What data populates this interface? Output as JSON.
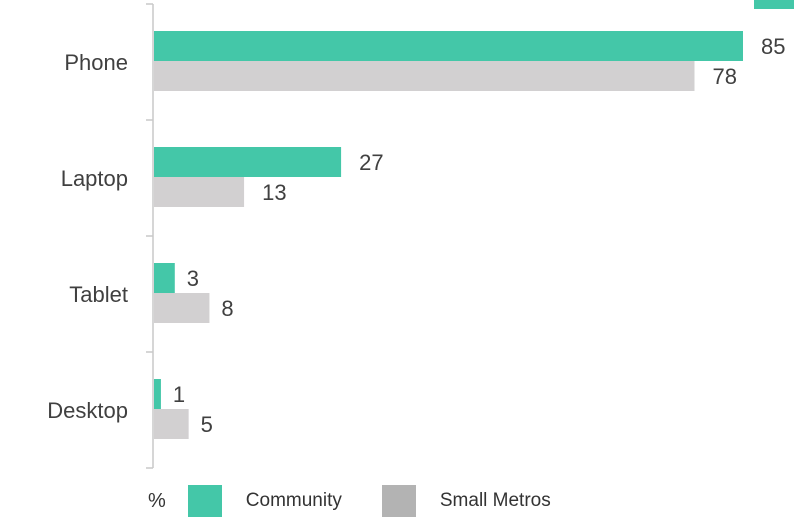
{
  "colors": {
    "community": "#44c7a8",
    "small_metros": "#d2d0d1",
    "small_metros_legend": "#b3b3b3",
    "axis": "#c8c8c8"
  },
  "legend": {
    "unit": "%",
    "items": [
      {
        "label": "Community",
        "color_key": "community_legend"
      },
      {
        "label": "Small Metros",
        "color_key": "small_metros_legend"
      }
    ]
  },
  "chart_data": {
    "type": "bar",
    "orientation": "horizontal",
    "categories": [
      "Phone",
      "Laptop",
      "Tablet",
      "Desktop"
    ],
    "series": [
      {
        "name": "Community",
        "values": [
          85,
          27,
          3,
          1
        ]
      },
      {
        "name": "Small Metros",
        "values": [
          78,
          13,
          8,
          5
        ]
      }
    ],
    "xlim": [
      0,
      100
    ],
    "grid": false,
    "legend_position": "bottom"
  }
}
